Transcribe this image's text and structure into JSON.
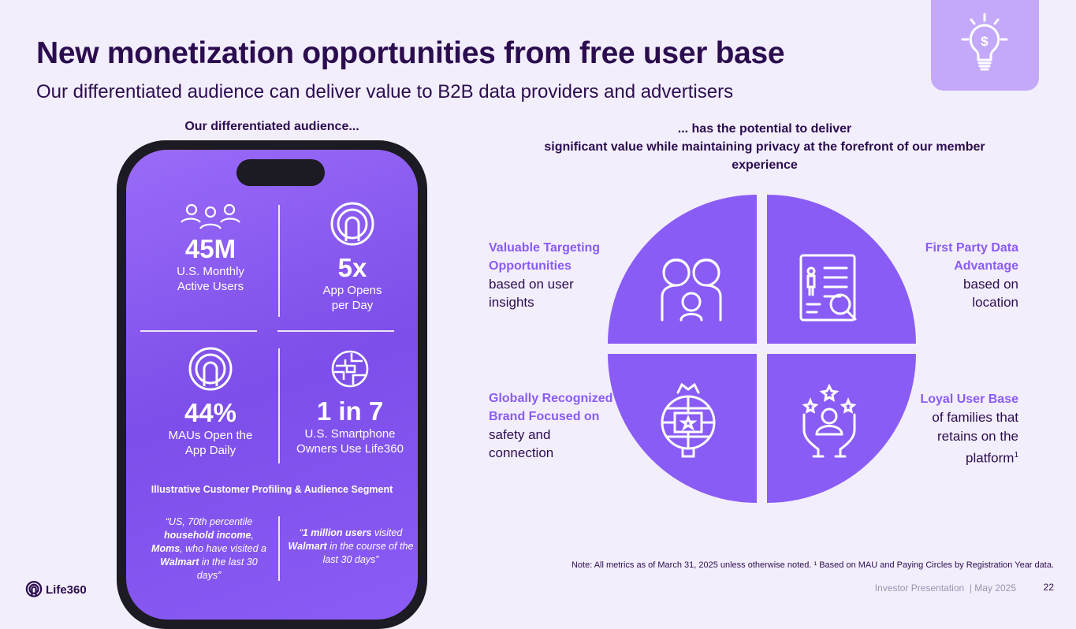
{
  "header": {
    "title": "New monetization opportunities from free user base",
    "subtitle": "Our differentiated audience can deliver value to B2B data providers and advertisers",
    "icon": "lightbulb-dollar-icon"
  },
  "left": {
    "heading": "Our differentiated audience...",
    "stats": [
      {
        "value": "45M",
        "label": "U.S. Monthly Active Users",
        "icon": "people-icon"
      },
      {
        "value": "5x",
        "label": "App Opens per Day",
        "icon": "life360-circle-icon"
      },
      {
        "value": "44%",
        "label": "MAUs Open the App Daily",
        "icon": "life360-circle-icon"
      },
      {
        "value": "1 in 7",
        "label": "U.S. Smartphone Owners Use Life360",
        "icon": "globe-icon"
      }
    ],
    "profiling_title": "Illustrative Customer Profiling & Audience Segment",
    "quote1": {
      "a": "“US, 70th percentile ",
      "b": "household income",
      "c": ", ",
      "d": "Moms",
      "e": ", who have visited a ",
      "f": "Walmart",
      "g": " in the last 30 days”"
    },
    "quote2": {
      "a": "“",
      "b": "1 million users",
      "c": " visited ",
      "d": "Walmart",
      "e": " in the course of the last 30 days”"
    }
  },
  "right": {
    "heading_line1": "... has the potential to deliver",
    "heading_line2": "significant value while maintaining privacy at the forefront of our member experience",
    "quadrants": [
      {
        "title": "Valuable Targeting Opportunities",
        "text": "based on user insights",
        "icon": "family-icon"
      },
      {
        "title": "First Party Data Advantage",
        "text": "based on location",
        "icon": "document-search-icon"
      },
      {
        "title": "Globally Recognized Brand Focused on",
        "text": "safety and connection",
        "icon": "globe-star-icon"
      },
      {
        "title": "Loyal User Base",
        "text": " of families that retains on the platform",
        "sup": "1",
        "icon": "hands-user-stars-icon"
      }
    ],
    "accent": "#8a5cf6"
  },
  "footer": {
    "note": "Note: All metrics as of March 31, 2025 unless otherwise noted. ¹ Based on MAU and Paying Circles by Registration Year data.",
    "presentation": "Investor Presentation  | May 2025",
    "page": "22",
    "logo": "Life360"
  }
}
